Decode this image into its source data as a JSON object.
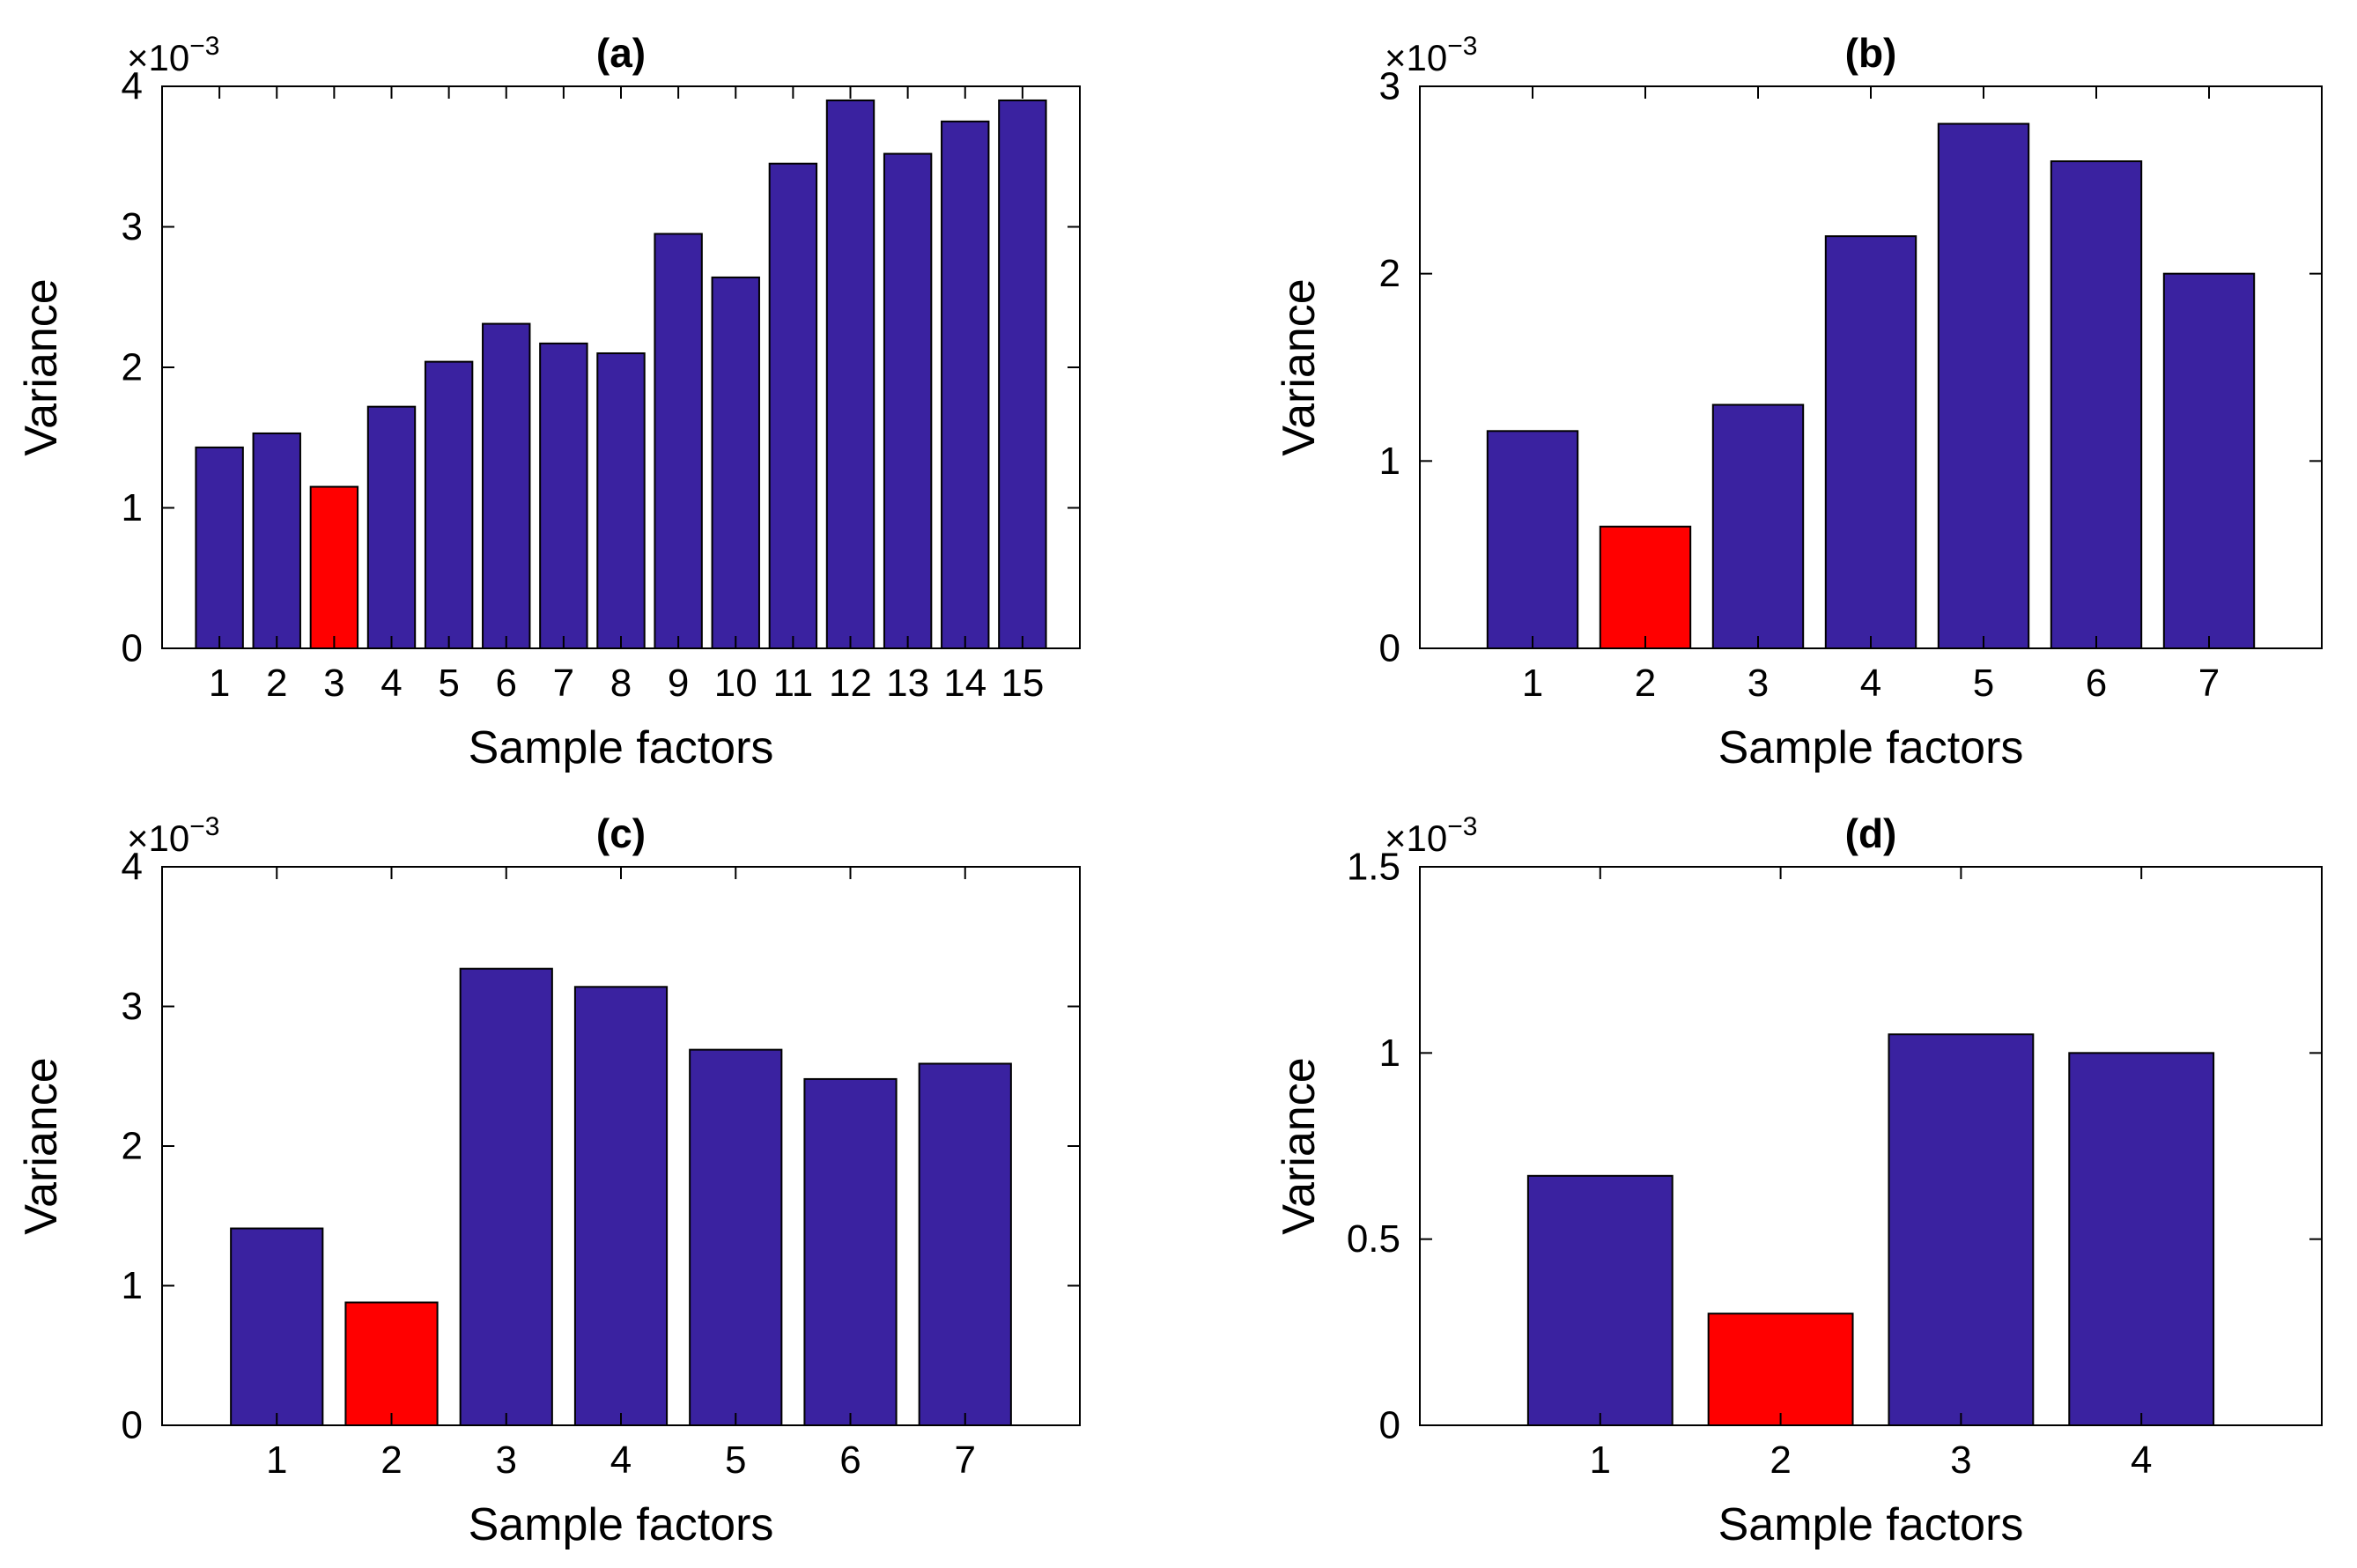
{
  "colors": {
    "bar": "#3a22a0",
    "highlight": "#ff0000",
    "axis": "#000000",
    "background": "#ffffff"
  },
  "chart_data": [
    {
      "id": "a",
      "type": "bar",
      "title": "(a)",
      "xlabel": "Sample factors",
      "ylabel": "Variance",
      "y_scale_base": "×10",
      "y_scale_exponent": "−3",
      "categories": [
        "1",
        "2",
        "3",
        "4",
        "5",
        "6",
        "7",
        "8",
        "9",
        "10",
        "11",
        "12",
        "13",
        "14",
        "15"
      ],
      "values": [
        1.43,
        1.53,
        1.15,
        1.72,
        2.04,
        2.31,
        2.17,
        2.1,
        2.95,
        2.64,
        3.45,
        3.9,
        3.52,
        3.75,
        3.9
      ],
      "highlight_index": 2,
      "ylim": [
        0,
        4
      ],
      "yticks": [
        0,
        1,
        2,
        3,
        4
      ],
      "ytick_labels": [
        "0",
        "1",
        "2",
        "3",
        "4"
      ],
      "grid": false
    },
    {
      "id": "b",
      "type": "bar",
      "title": "(b)",
      "xlabel": "Sample factors",
      "ylabel": "Variance",
      "y_scale_base": "×10",
      "y_scale_exponent": "−3",
      "categories": [
        "1",
        "2",
        "3",
        "4",
        "5",
        "6",
        "7"
      ],
      "values": [
        1.16,
        0.65,
        1.3,
        2.2,
        2.8,
        2.6,
        2.0
      ],
      "highlight_index": 1,
      "ylim": [
        0,
        3
      ],
      "yticks": [
        0,
        1,
        2,
        3
      ],
      "ytick_labels": [
        "0",
        "1",
        "2",
        "3"
      ],
      "grid": false
    },
    {
      "id": "c",
      "type": "bar",
      "title": "(c)",
      "xlabel": "Sample factors",
      "ylabel": "Variance",
      "y_scale_base": "×10",
      "y_scale_exponent": "−3",
      "categories": [
        "1",
        "2",
        "3",
        "4",
        "5",
        "6",
        "7"
      ],
      "values": [
        1.41,
        0.88,
        3.27,
        3.14,
        2.69,
        2.48,
        2.59
      ],
      "highlight_index": 1,
      "ylim": [
        0,
        4
      ],
      "yticks": [
        0,
        1,
        2,
        3,
        4
      ],
      "ytick_labels": [
        "0",
        "1",
        "2",
        "3",
        "4"
      ],
      "grid": false
    },
    {
      "id": "d",
      "type": "bar",
      "title": "(d)",
      "xlabel": "Sample factors",
      "ylabel": "Variance",
      "y_scale_base": "×10",
      "y_scale_exponent": "−3",
      "categories": [
        "1",
        "2",
        "3",
        "4"
      ],
      "values": [
        0.67,
        0.3,
        1.05,
        1.0
      ],
      "highlight_index": 1,
      "ylim": [
        0,
        1.5
      ],
      "yticks": [
        0,
        0.5,
        1,
        1.5
      ],
      "ytick_labels": [
        "0",
        "0.5",
        "1",
        "1.5"
      ],
      "grid": false
    }
  ]
}
